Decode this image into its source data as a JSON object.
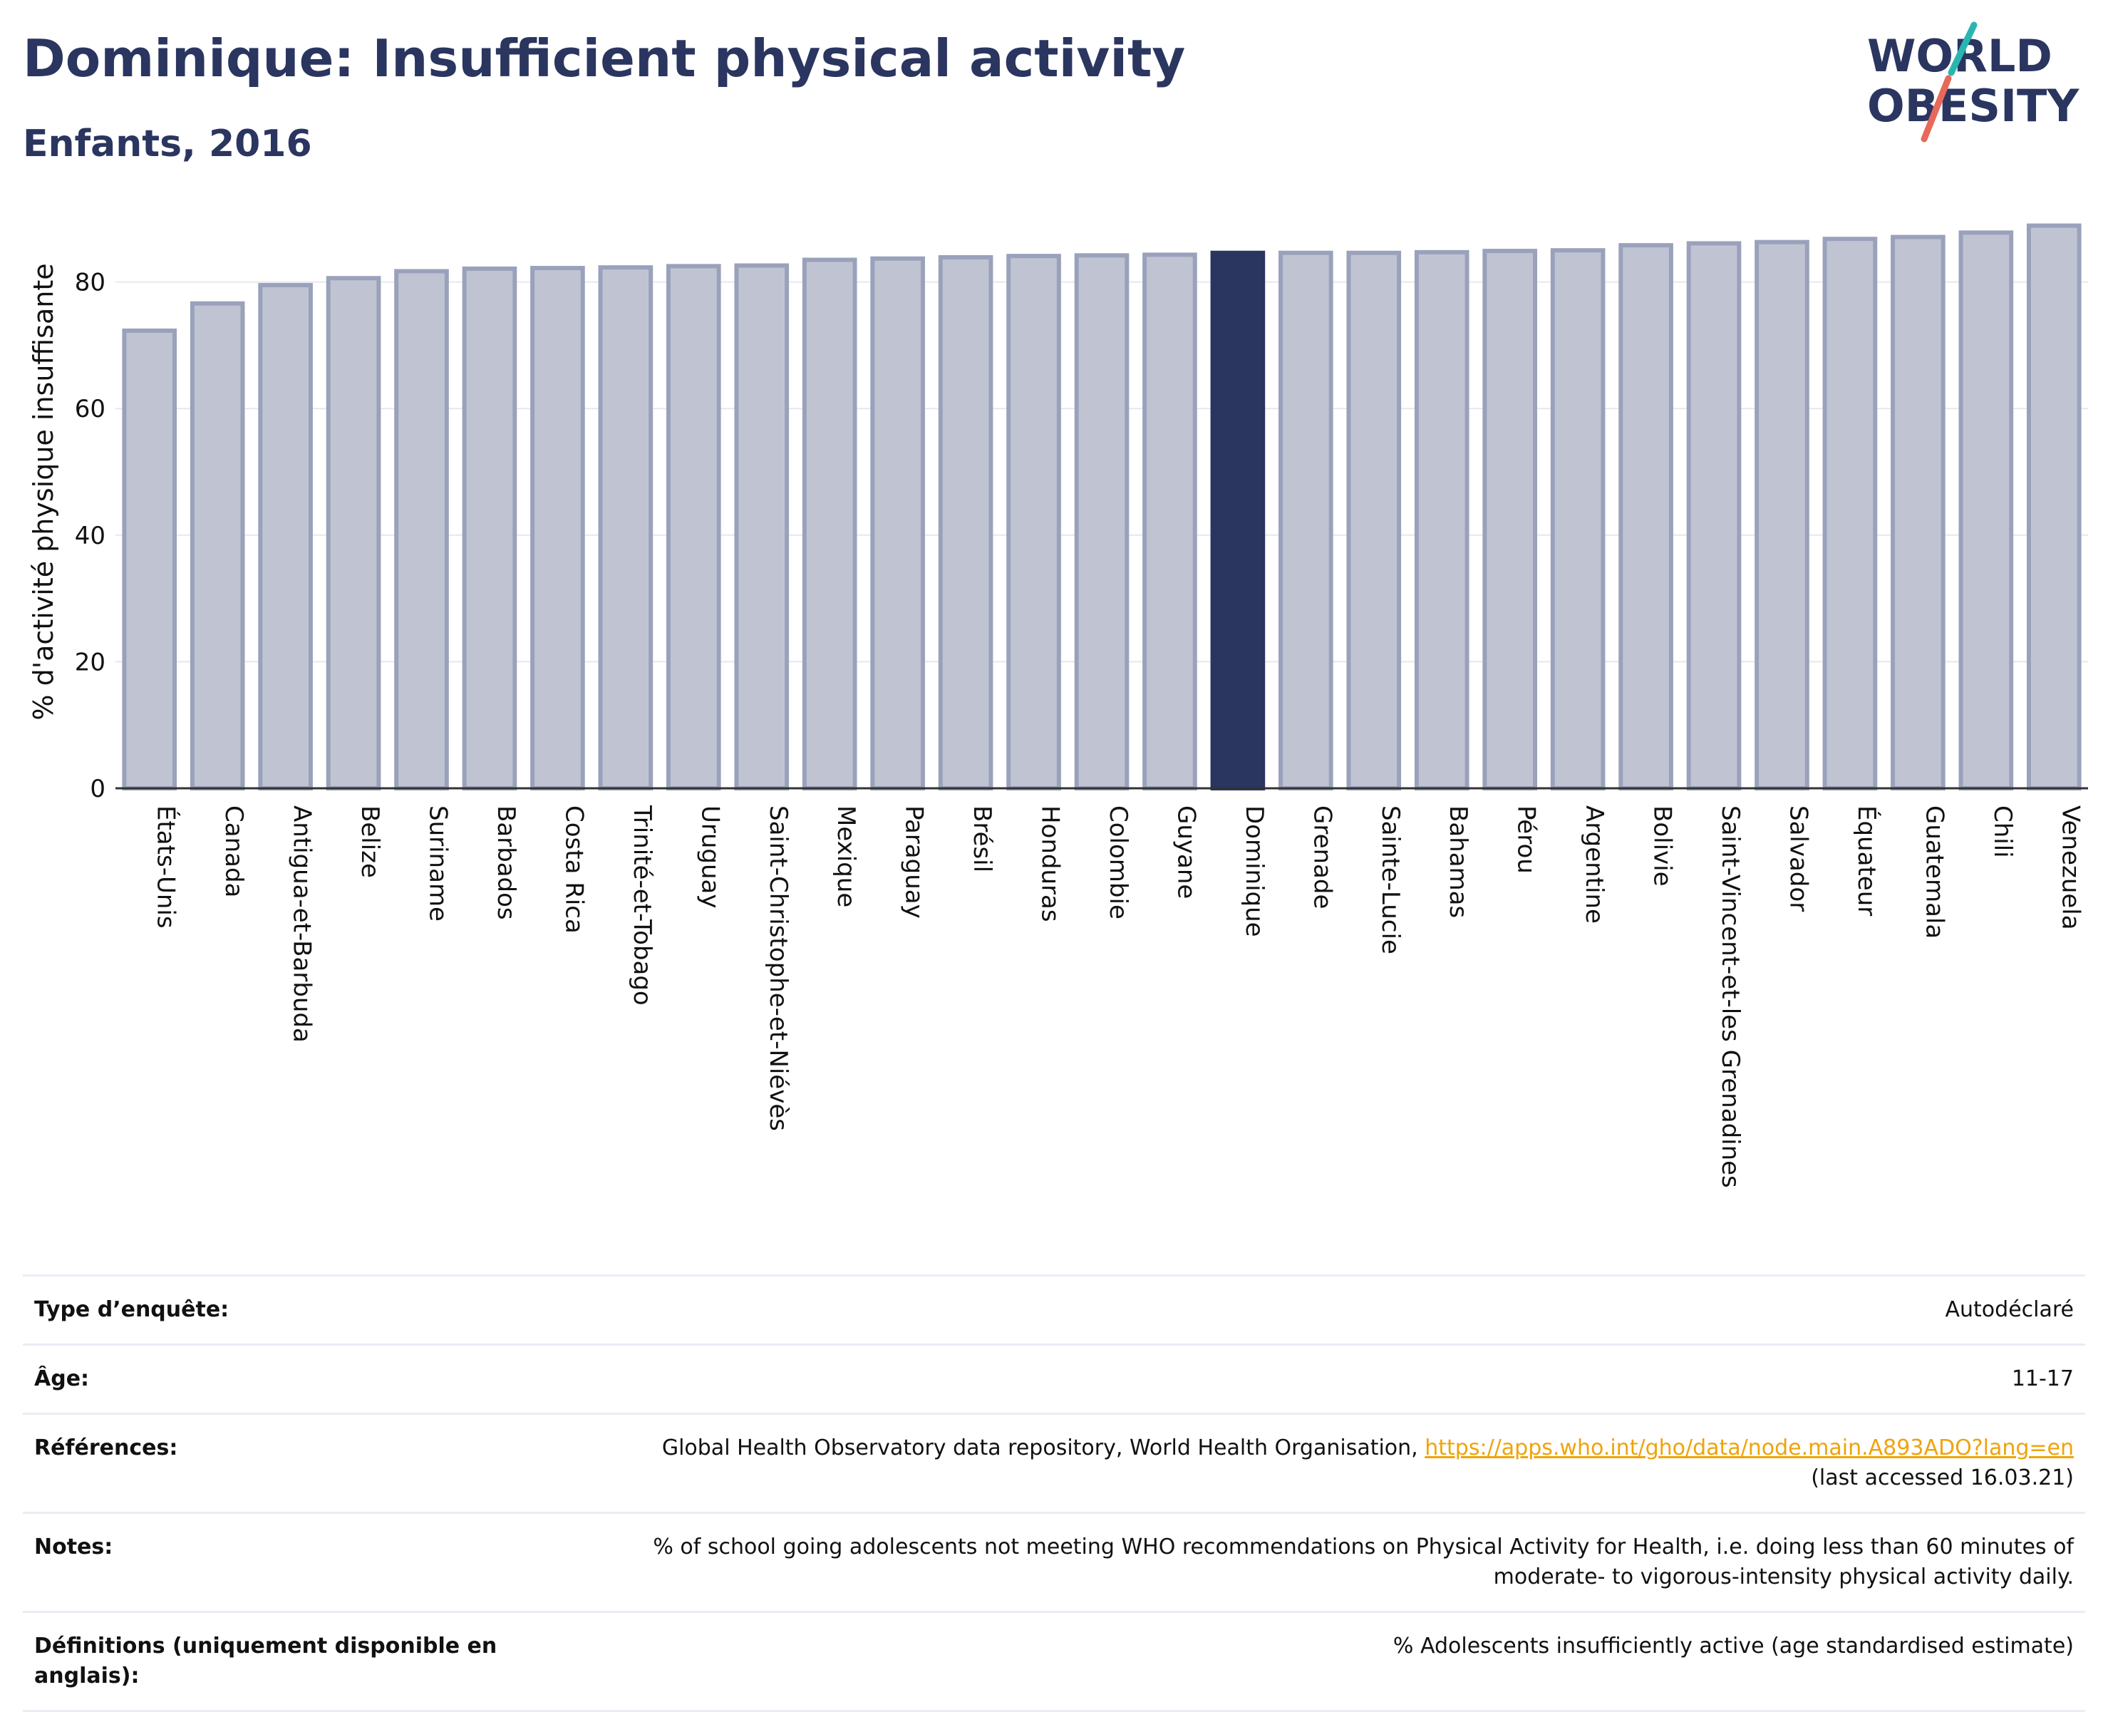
{
  "header": {
    "title": "Dominique: Insufficient physical activity",
    "subtitle": "Enfants, 2016"
  },
  "logo": {
    "line1": "WORLD",
    "line2": "OBESITY"
  },
  "colors": {
    "bar_fill": "#c0c4d2",
    "bar_stroke": "#9aa1bb",
    "highlight": "#2a3560",
    "title": "#2a3560",
    "link": "#f0a30a",
    "logo_teal": "#2bb5b0",
    "logo_coral": "#e8685a"
  },
  "chart_data": {
    "type": "bar",
    "title": "",
    "xlabel": "",
    "ylabel": "% d'activité physique insuffisante",
    "ylim": [
      0,
      90
    ],
    "yticks": [
      0,
      20,
      40,
      60,
      80
    ],
    "grid": true,
    "highlight": "Dominique",
    "categories": [
      "États-Unis",
      "Canada",
      "Antigua-et-Barbuda",
      "Belize",
      "Suriname",
      "Barbados",
      "Costa Rica",
      "Trinité-et-Tobago",
      "Uruguay",
      "Saint-Christophe-et-Niévès",
      "Mexique",
      "Paraguay",
      "Brésil",
      "Honduras",
      "Colombie",
      "Guyane",
      "Dominique",
      "Grenade",
      "Sainte-Lucie",
      "Bahamas",
      "Pérou",
      "Argentine",
      "Bolivie",
      "Saint-Vincent-et-les Grenadines",
      "Salvador",
      "Équateur",
      "Guatemala",
      "Chili",
      "Venezuela"
    ],
    "values": [
      72.3,
      76.6,
      79.5,
      80.6,
      81.7,
      82.1,
      82.2,
      82.3,
      82.5,
      82.6,
      83.5,
      83.7,
      83.9,
      84.1,
      84.2,
      84.3,
      84.6,
      84.6,
      84.6,
      84.7,
      84.9,
      85.0,
      85.8,
      86.1,
      86.3,
      86.8,
      87.1,
      87.8,
      88.9
    ]
  },
  "info_table": [
    {
      "label": "Type d’enquête:",
      "value": "Autodéclaré"
    },
    {
      "label": "Âge:",
      "value": "11-17"
    },
    {
      "label": "Références:",
      "value": "Global Health Observatory data repository, World Health Organisation,",
      "link": "https://apps.who.int/gho/data/node.main.A893ADO?lang=en",
      "value2": "(last accessed 16.03.21)"
    },
    {
      "label": "Notes:",
      "value": "% of school going adolescents not meeting WHO recommendations on Physical Activity for Health, i.e. doing less than 60 minutes of moderate- to vigorous-intensity physical activity daily."
    },
    {
      "label": "Définitions (uniquement disponible en anglais):",
      "value": "% Adolescents insufficiently active (age standardised estimate)"
    }
  ]
}
